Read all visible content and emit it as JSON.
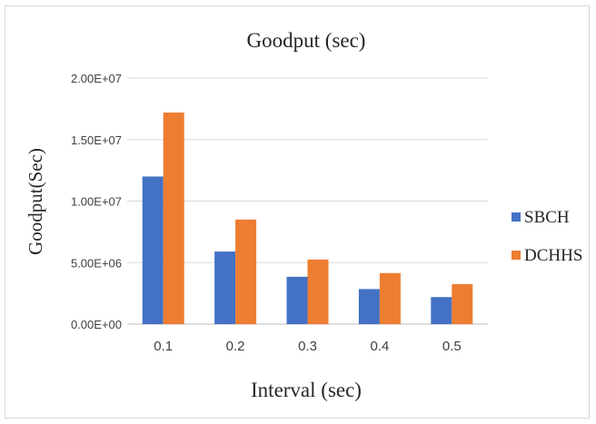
{
  "chart_data": {
    "type": "bar",
    "title": "Goodput (sec)",
    "xlabel": "Interval (sec)",
    "ylabel": "Goodput(Sec)",
    "categories": [
      "0.1",
      "0.2",
      "0.3",
      "0.4",
      "0.5"
    ],
    "series": [
      {
        "name": "SBCH",
        "color": "#4472C4",
        "values": [
          12000000,
          5900000,
          3850000,
          2850000,
          2200000
        ]
      },
      {
        "name": "DCHHS",
        "color": "#ED7D31",
        "values": [
          17200000,
          8500000,
          5250000,
          4150000,
          3250000
        ]
      }
    ],
    "ylim": [
      0,
      20000000
    ],
    "yticks": [
      {
        "value": 0,
        "label": "0.00E+00"
      },
      {
        "value": 5000000,
        "label": "5.00E+06"
      },
      {
        "value": 10000000,
        "label": "1.00E+07"
      },
      {
        "value": 15000000,
        "label": "1.50E+07"
      },
      {
        "value": 20000000,
        "label": "2.00E+07"
      }
    ],
    "grid": true,
    "legend": "right"
  }
}
